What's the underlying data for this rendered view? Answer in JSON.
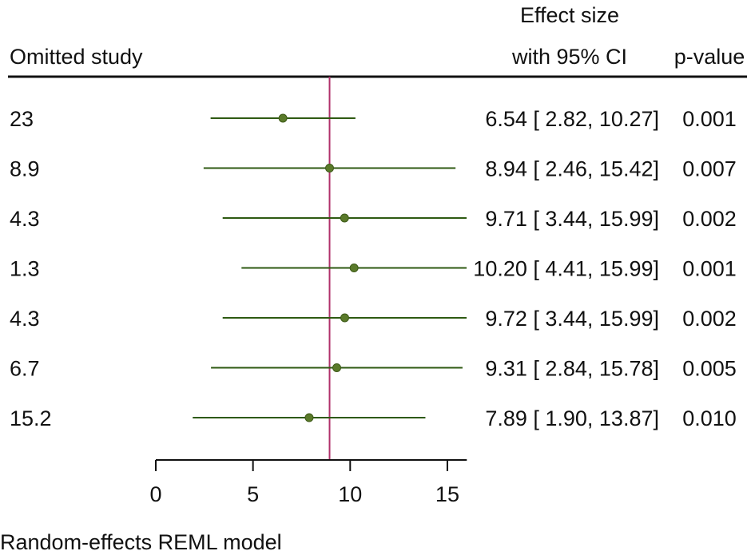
{
  "header": {
    "col_study": "Omitted study",
    "col_effect_line1": "Effect size",
    "col_effect_line2": "with 95% CI",
    "col_p": "p-value"
  },
  "footer": "Random-effects REML model",
  "colors": {
    "marker": "#5a7a2a",
    "whisker": "#2e5a12",
    "reference_line": "#b0306a",
    "axis": "#111111"
  },
  "chart_data": {
    "type": "forest",
    "title": "",
    "xlabel": "",
    "xlim": [
      0,
      16
    ],
    "xticks": [
      0,
      5,
      10,
      15
    ],
    "reference_value": 8.94,
    "rows": [
      {
        "study": "23",
        "effect": 6.54,
        "lower": 2.82,
        "upper": 10.27,
        "ci_text": "6.54 [ 2.82,  10.27]",
        "p_value": "0.001"
      },
      {
        "study": "8.9",
        "effect": 8.94,
        "lower": 2.46,
        "upper": 15.42,
        "ci_text": "8.94 [ 2.46,  15.42]",
        "p_value": "0.007"
      },
      {
        "study": "4.3",
        "effect": 9.71,
        "lower": 3.44,
        "upper": 15.99,
        "ci_text": "9.71 [ 3.44,  15.99]",
        "p_value": "0.002"
      },
      {
        "study": "1.3",
        "effect": 10.2,
        "lower": 4.41,
        "upper": 15.99,
        "ci_text": "10.20 [ 4.41,  15.99]",
        "p_value": "0.001"
      },
      {
        "study": "4.3",
        "effect": 9.72,
        "lower": 3.44,
        "upper": 15.99,
        "ci_text": "9.72 [ 3.44,  15.99]",
        "p_value": "0.002"
      },
      {
        "study": "6.7",
        "effect": 9.31,
        "lower": 2.84,
        "upper": 15.78,
        "ci_text": "9.31 [ 2.84,  15.78]",
        "p_value": "0.005"
      },
      {
        "study": "15.2",
        "effect": 7.89,
        "lower": 1.9,
        "upper": 13.87,
        "ci_text": "7.89 [ 1.90,  13.87]",
        "p_value": "0.010"
      }
    ]
  }
}
